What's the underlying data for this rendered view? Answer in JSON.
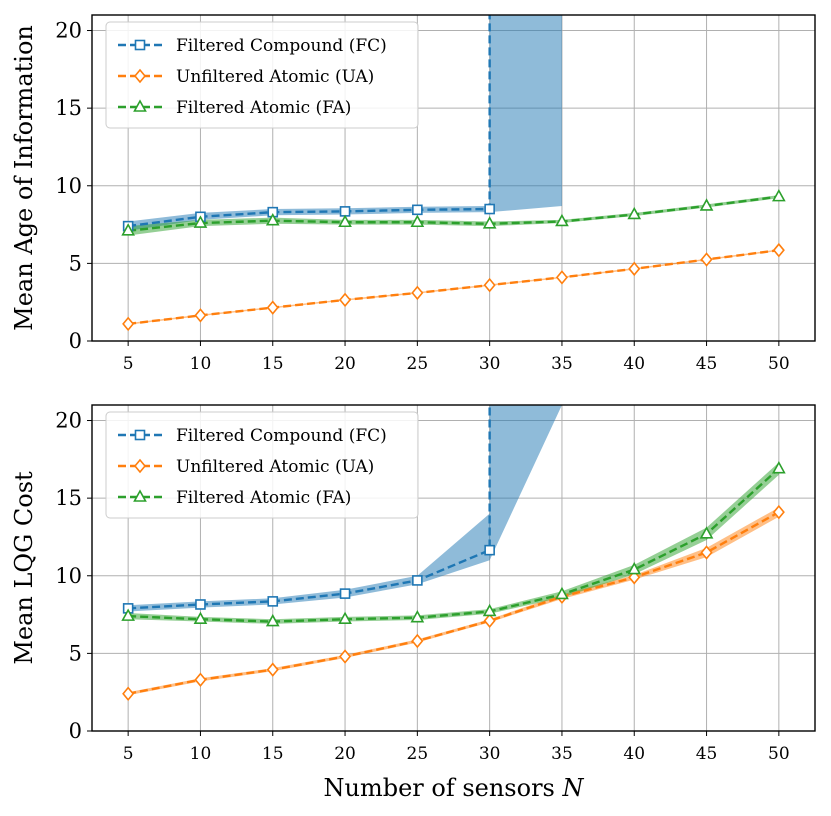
{
  "chart_data": [
    {
      "type": "line",
      "ylabel": "Mean Age of Information",
      "xlabel": "",
      "xlim": [
        2.5,
        52.5
      ],
      "ylim": [
        0,
        21
      ],
      "xticks": [
        "5",
        "10",
        "15",
        "20",
        "25",
        "30",
        "35",
        "40",
        "45",
        "50"
      ],
      "yticks": [
        "0",
        "5",
        "10",
        "15",
        "20"
      ],
      "grid": true,
      "legend_position": "top-left",
      "series": [
        {
          "name": "Filtered Compound (FC)",
          "color": "#1f77b4",
          "marker": "square",
          "x": [
            5,
            10,
            15,
            20,
            25,
            30,
            30
          ],
          "y": [
            7.4,
            8.0,
            8.3,
            8.35,
            8.45,
            8.5,
            21
          ],
          "band_x": [
            5,
            10,
            15,
            20,
            25,
            30,
            30,
            35
          ],
          "band_low": [
            7.1,
            7.8,
            8.1,
            8.15,
            8.25,
            8.3,
            8.3,
            8.7
          ],
          "band_high": [
            7.7,
            8.25,
            8.5,
            8.55,
            8.65,
            8.7,
            21,
            21
          ]
        },
        {
          "name": "Unfiltered Atomic (UA)",
          "color": "#ff7f0e",
          "marker": "diamond",
          "x": [
            5,
            10,
            15,
            20,
            25,
            30,
            35,
            40,
            45,
            50
          ],
          "y": [
            1.1,
            1.65,
            2.15,
            2.65,
            3.1,
            3.6,
            4.1,
            4.65,
            5.25,
            5.85
          ],
          "band_low": [
            1.05,
            1.6,
            2.1,
            2.6,
            3.05,
            3.55,
            4.05,
            4.6,
            5.2,
            5.8
          ],
          "band_high": [
            1.15,
            1.7,
            2.2,
            2.7,
            3.15,
            3.65,
            4.15,
            4.7,
            5.3,
            5.9
          ]
        },
        {
          "name": "Filtered Atomic (FA)",
          "color": "#2ca02c",
          "marker": "triangle",
          "x": [
            5,
            10,
            15,
            20,
            25,
            30,
            35,
            40,
            45,
            50
          ],
          "y": [
            7.1,
            7.6,
            7.75,
            7.65,
            7.65,
            7.55,
            7.7,
            8.15,
            8.7,
            9.3
          ],
          "band_low": [
            6.8,
            7.4,
            7.55,
            7.5,
            7.5,
            7.4,
            7.6,
            8.05,
            8.6,
            9.2
          ],
          "band_high": [
            7.4,
            7.8,
            7.95,
            7.8,
            7.8,
            7.7,
            7.8,
            8.25,
            8.8,
            9.4
          ]
        }
      ]
    },
    {
      "type": "line",
      "ylabel": "Mean LQG Cost",
      "xlabel": "Number of sensors N",
      "xlim": [
        2.5,
        52.5
      ],
      "ylim": [
        0,
        21
      ],
      "xticks": [
        "5",
        "10",
        "15",
        "20",
        "25",
        "30",
        "35",
        "40",
        "45",
        "50"
      ],
      "yticks": [
        "0",
        "5",
        "10",
        "15",
        "20"
      ],
      "grid": true,
      "legend_position": "top-left",
      "series": [
        {
          "name": "Filtered Compound (FC)",
          "color": "#1f77b4",
          "marker": "square",
          "x": [
            5,
            10,
            15,
            20,
            25,
            30,
            30
          ],
          "y": [
            7.9,
            8.15,
            8.35,
            8.85,
            9.7,
            11.65,
            21
          ],
          "band_x": [
            5,
            10,
            15,
            20,
            25,
            30,
            30,
            35
          ],
          "band_low": [
            7.7,
            7.95,
            8.15,
            8.6,
            9.45,
            11.0,
            11.0,
            21
          ],
          "band_high": [
            8.1,
            8.35,
            8.55,
            9.1,
            10.0,
            14.0,
            21,
            21
          ]
        },
        {
          "name": "Unfiltered Atomic (UA)",
          "color": "#ff7f0e",
          "marker": "diamond",
          "x": [
            5,
            10,
            15,
            20,
            25,
            30,
            35,
            40,
            45,
            50
          ],
          "y": [
            2.4,
            3.3,
            3.95,
            4.8,
            5.8,
            7.1,
            8.65,
            9.9,
            11.5,
            14.1
          ],
          "band_low": [
            2.3,
            3.2,
            3.85,
            4.7,
            5.7,
            7.0,
            8.5,
            9.75,
            11.2,
            13.8
          ],
          "band_high": [
            2.5,
            3.4,
            4.05,
            4.9,
            5.9,
            7.2,
            8.8,
            10.05,
            11.8,
            14.4
          ]
        },
        {
          "name": "Filtered Atomic (FA)",
          "color": "#2ca02c",
          "marker": "triangle",
          "x": [
            5,
            10,
            15,
            20,
            25,
            30,
            35,
            40,
            45,
            50
          ],
          "y": [
            7.4,
            7.2,
            7.05,
            7.2,
            7.3,
            7.7,
            8.8,
            10.4,
            12.7,
            16.9
          ],
          "band_low": [
            7.2,
            7.05,
            6.9,
            7.05,
            7.15,
            7.55,
            8.6,
            10.1,
            12.3,
            16.5
          ],
          "band_high": [
            7.6,
            7.35,
            7.2,
            7.35,
            7.45,
            7.85,
            9.0,
            10.7,
            13.1,
            17.3
          ]
        }
      ]
    }
  ]
}
